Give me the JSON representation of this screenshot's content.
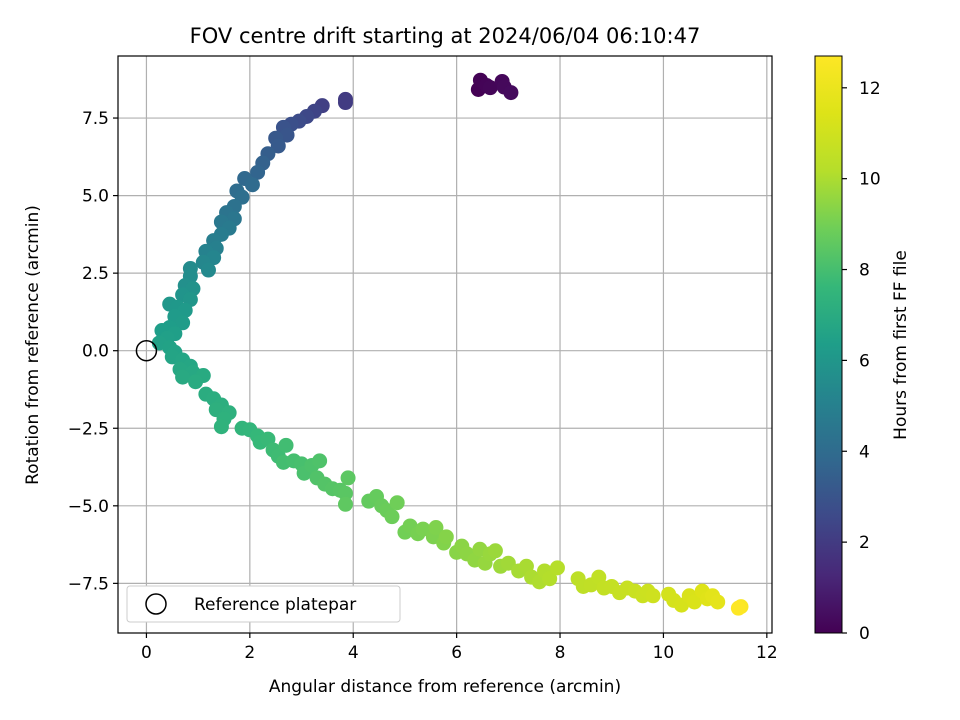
{
  "chart_data": {
    "type": "scatter",
    "title": "FOV centre drift starting at 2024/06/04 06:10:47",
    "xlabel": "Angular distance from reference (arcmin)",
    "ylabel": "Rotation from reference (arcmin)",
    "xlim": [
      -0.55,
      12.1
    ],
    "ylim": [
      -9.1,
      9.5
    ],
    "xticks": [
      0,
      2,
      4,
      6,
      8,
      10,
      12
    ],
    "xtick_labels": [
      "0",
      "2",
      "4",
      "6",
      "8",
      "10",
      "12"
    ],
    "yticks": [
      -7.5,
      -5.0,
      -2.5,
      0.0,
      2.5,
      5.0,
      7.5
    ],
    "ytick_labels": [
      "−7.5",
      "−5.0",
      "−2.5",
      "0.0",
      "2.5",
      "5.0",
      "7.5"
    ],
    "grid": true,
    "legend": {
      "position": "lower-left",
      "entries": [
        "Reference platepar"
      ]
    },
    "colorbar": {
      "label": "Hours from first FF file",
      "colormap": "viridis",
      "range": [
        0,
        12.7
      ],
      "ticks": [
        0,
        2,
        4,
        6,
        8,
        10,
        12
      ],
      "tick_labels": [
        "0",
        "2",
        "4",
        "6",
        "8",
        "10",
        "12"
      ]
    },
    "reference_point": {
      "x": 0.0,
      "y": 0.0
    },
    "points": [
      {
        "x": 6.42,
        "y": 8.42,
        "t": 0.0
      },
      {
        "x": 6.46,
        "y": 8.72,
        "t": 0.05
      },
      {
        "x": 6.58,
        "y": 8.55,
        "t": 0.1
      },
      {
        "x": 6.65,
        "y": 8.48,
        "t": 0.15
      },
      {
        "x": 6.88,
        "y": 8.68,
        "t": 0.2
      },
      {
        "x": 6.92,
        "y": 8.5,
        "t": 0.25
      },
      {
        "x": 7.05,
        "y": 8.32,
        "t": 0.3
      },
      {
        "x": 3.85,
        "y": 8.1,
        "t": 2.0
      },
      {
        "x": 3.85,
        "y": 8.0,
        "t": 2.05
      },
      {
        "x": 3.4,
        "y": 7.9,
        "t": 2.2
      },
      {
        "x": 3.25,
        "y": 7.72,
        "t": 2.35
      },
      {
        "x": 3.1,
        "y": 7.55,
        "t": 2.5
      },
      {
        "x": 2.95,
        "y": 7.4,
        "t": 2.65
      },
      {
        "x": 2.8,
        "y": 7.3,
        "t": 2.8
      },
      {
        "x": 2.65,
        "y": 7.2,
        "t": 2.95
      },
      {
        "x": 2.72,
        "y": 6.95,
        "t": 3.05
      },
      {
        "x": 2.5,
        "y": 6.85,
        "t": 3.15
      },
      {
        "x": 2.55,
        "y": 6.6,
        "t": 3.25
      },
      {
        "x": 2.35,
        "y": 6.35,
        "t": 3.4
      },
      {
        "x": 2.25,
        "y": 6.05,
        "t": 3.55
      },
      {
        "x": 2.15,
        "y": 5.75,
        "t": 3.7
      },
      {
        "x": 1.9,
        "y": 5.55,
        "t": 3.85
      },
      {
        "x": 2.05,
        "y": 5.35,
        "t": 3.95
      },
      {
        "x": 1.75,
        "y": 5.15,
        "t": 4.05
      },
      {
        "x": 1.85,
        "y": 4.95,
        "t": 4.15
      },
      {
        "x": 1.7,
        "y": 4.65,
        "t": 4.3
      },
      {
        "x": 1.55,
        "y": 4.45,
        "t": 4.4
      },
      {
        "x": 1.7,
        "y": 4.25,
        "t": 4.5
      },
      {
        "x": 1.45,
        "y": 4.15,
        "t": 4.6
      },
      {
        "x": 1.6,
        "y": 3.95,
        "t": 4.7
      },
      {
        "x": 1.45,
        "y": 3.75,
        "t": 4.8
      },
      {
        "x": 1.3,
        "y": 3.55,
        "t": 4.9
      },
      {
        "x": 1.35,
        "y": 3.3,
        "t": 5.0
      },
      {
        "x": 1.15,
        "y": 3.2,
        "t": 5.1
      },
      {
        "x": 1.3,
        "y": 3.0,
        "t": 5.2
      },
      {
        "x": 1.1,
        "y": 2.85,
        "t": 5.3
      },
      {
        "x": 1.2,
        "y": 2.6,
        "t": 5.4
      },
      {
        "x": 0.85,
        "y": 2.65,
        "t": 5.5
      },
      {
        "x": 0.85,
        "y": 2.4,
        "t": 5.6
      },
      {
        "x": 0.75,
        "y": 2.1,
        "t": 5.7
      },
      {
        "x": 0.9,
        "y": 2.0,
        "t": 5.8
      },
      {
        "x": 0.7,
        "y": 1.8,
        "t": 5.9
      },
      {
        "x": 0.85,
        "y": 1.65,
        "t": 6.0
      },
      {
        "x": 0.45,
        "y": 1.5,
        "t": 6.05
      },
      {
        "x": 0.6,
        "y": 1.4,
        "t": 6.1
      },
      {
        "x": 0.75,
        "y": 1.3,
        "t": 6.15
      },
      {
        "x": 0.55,
        "y": 1.1,
        "t": 6.2
      },
      {
        "x": 0.7,
        "y": 0.9,
        "t": 6.25
      },
      {
        "x": 0.45,
        "y": 0.75,
        "t": 6.3
      },
      {
        "x": 0.3,
        "y": 0.65,
        "t": 6.35
      },
      {
        "x": 0.55,
        "y": 0.55,
        "t": 6.4
      },
      {
        "x": 0.4,
        "y": 0.4,
        "t": 6.45
      },
      {
        "x": 0.25,
        "y": 0.25,
        "t": 6.5
      },
      {
        "x": 0.45,
        "y": 0.1,
        "t": 6.55
      },
      {
        "x": 0.55,
        "y": -0.05,
        "t": 6.6
      },
      {
        "x": 0.5,
        "y": -0.2,
        "t": 6.65
      },
      {
        "x": 0.7,
        "y": -0.3,
        "t": 6.7
      },
      {
        "x": 0.85,
        "y": -0.5,
        "t": 6.75
      },
      {
        "x": 0.65,
        "y": -0.6,
        "t": 6.8
      },
      {
        "x": 0.9,
        "y": -0.7,
        "t": 6.85
      },
      {
        "x": 0.7,
        "y": -0.85,
        "t": 6.9
      },
      {
        "x": 1.1,
        "y": -0.8,
        "t": 6.95
      },
      {
        "x": 0.95,
        "y": -1.0,
        "t": 7.0
      },
      {
        "x": 1.15,
        "y": -1.4,
        "t": 7.05
      },
      {
        "x": 1.3,
        "y": -1.55,
        "t": 7.1
      },
      {
        "x": 1.45,
        "y": -1.75,
        "t": 7.15
      },
      {
        "x": 1.35,
        "y": -1.9,
        "t": 7.2
      },
      {
        "x": 1.6,
        "y": -2.0,
        "t": 7.25
      },
      {
        "x": 1.5,
        "y": -2.2,
        "t": 7.3
      },
      {
        "x": 1.45,
        "y": -2.45,
        "t": 7.35
      },
      {
        "x": 1.85,
        "y": -2.5,
        "t": 7.45
      },
      {
        "x": 2.0,
        "y": -2.55,
        "t": 7.5
      },
      {
        "x": 2.15,
        "y": -2.75,
        "t": 7.6
      },
      {
        "x": 2.2,
        "y": -2.95,
        "t": 7.65
      },
      {
        "x": 2.35,
        "y": -2.85,
        "t": 7.7
      },
      {
        "x": 2.45,
        "y": -3.2,
        "t": 7.8
      },
      {
        "x": 2.55,
        "y": -3.4,
        "t": 7.85
      },
      {
        "x": 2.7,
        "y": -3.05,
        "t": 7.9
      },
      {
        "x": 2.65,
        "y": -3.6,
        "t": 7.95
      },
      {
        "x": 2.85,
        "y": -3.55,
        "t": 8.0
      },
      {
        "x": 3.0,
        "y": -3.65,
        "t": 8.05
      },
      {
        "x": 3.05,
        "y": -3.95,
        "t": 8.1
      },
      {
        "x": 3.2,
        "y": -3.7,
        "t": 8.15
      },
      {
        "x": 3.35,
        "y": -3.55,
        "t": 8.2
      },
      {
        "x": 3.3,
        "y": -4.1,
        "t": 8.25
      },
      {
        "x": 3.45,
        "y": -4.3,
        "t": 8.3
      },
      {
        "x": 3.6,
        "y": -4.45,
        "t": 8.35
      },
      {
        "x": 3.75,
        "y": -4.5,
        "t": 8.4
      },
      {
        "x": 3.85,
        "y": -4.6,
        "t": 8.45
      },
      {
        "x": 3.9,
        "y": -4.1,
        "t": 8.5
      },
      {
        "x": 3.85,
        "y": -4.95,
        "t": 8.55
      },
      {
        "x": 4.3,
        "y": -4.85,
        "t": 8.65
      },
      {
        "x": 4.45,
        "y": -4.7,
        "t": 8.7
      },
      {
        "x": 4.55,
        "y": -5.0,
        "t": 8.75
      },
      {
        "x": 4.65,
        "y": -5.15,
        "t": 8.8
      },
      {
        "x": 4.75,
        "y": -5.35,
        "t": 8.85
      },
      {
        "x": 4.85,
        "y": -4.9,
        "t": 8.9
      },
      {
        "x": 5.0,
        "y": -5.85,
        "t": 8.95
      },
      {
        "x": 5.1,
        "y": -5.65,
        "t": 9.0
      },
      {
        "x": 5.25,
        "y": -5.9,
        "t": 9.05
      },
      {
        "x": 5.35,
        "y": -5.75,
        "t": 9.1
      },
      {
        "x": 5.55,
        "y": -6.0,
        "t": 9.15
      },
      {
        "x": 5.6,
        "y": -5.7,
        "t": 9.2
      },
      {
        "x": 5.75,
        "y": -6.2,
        "t": 9.25
      },
      {
        "x": 5.8,
        "y": -6.0,
        "t": 9.3
      },
      {
        "x": 6.0,
        "y": -6.5,
        "t": 9.35
      },
      {
        "x": 6.1,
        "y": -6.3,
        "t": 9.4
      },
      {
        "x": 6.2,
        "y": -6.55,
        "t": 9.45
      },
      {
        "x": 6.35,
        "y": -6.75,
        "t": 9.5
      },
      {
        "x": 6.45,
        "y": -6.4,
        "t": 9.55
      },
      {
        "x": 6.55,
        "y": -6.85,
        "t": 9.6
      },
      {
        "x": 6.65,
        "y": -6.55,
        "t": 9.65
      },
      {
        "x": 6.75,
        "y": -6.45,
        "t": 9.7
      },
      {
        "x": 6.85,
        "y": -6.95,
        "t": 9.75
      },
      {
        "x": 7.0,
        "y": -6.85,
        "t": 9.8
      },
      {
        "x": 7.2,
        "y": -7.1,
        "t": 9.9
      },
      {
        "x": 7.35,
        "y": -6.95,
        "t": 9.95
      },
      {
        "x": 7.45,
        "y": -7.3,
        "t": 10.0
      },
      {
        "x": 7.6,
        "y": -7.45,
        "t": 10.05
      },
      {
        "x": 7.7,
        "y": -7.1,
        "t": 10.1
      },
      {
        "x": 7.8,
        "y": -7.35,
        "t": 10.15
      },
      {
        "x": 7.95,
        "y": -7.0,
        "t": 10.2
      },
      {
        "x": 8.35,
        "y": -7.35,
        "t": 10.4
      },
      {
        "x": 8.45,
        "y": -7.6,
        "t": 10.45
      },
      {
        "x": 8.6,
        "y": -7.55,
        "t": 10.5
      },
      {
        "x": 8.75,
        "y": -7.3,
        "t": 10.55
      },
      {
        "x": 8.85,
        "y": -7.65,
        "t": 10.6
      },
      {
        "x": 9.0,
        "y": -7.6,
        "t": 10.65
      },
      {
        "x": 9.15,
        "y": -7.8,
        "t": 10.7
      },
      {
        "x": 9.3,
        "y": -7.65,
        "t": 10.75
      },
      {
        "x": 9.45,
        "y": -7.75,
        "t": 10.8
      },
      {
        "x": 9.6,
        "y": -7.9,
        "t": 10.85
      },
      {
        "x": 9.7,
        "y": -7.75,
        "t": 10.9
      },
      {
        "x": 9.8,
        "y": -7.9,
        "t": 10.95
      },
      {
        "x": 10.1,
        "y": -7.85,
        "t": 11.1
      },
      {
        "x": 10.2,
        "y": -8.05,
        "t": 11.15
      },
      {
        "x": 10.35,
        "y": -8.2,
        "t": 11.2
      },
      {
        "x": 10.5,
        "y": -7.9,
        "t": 11.3
      },
      {
        "x": 10.6,
        "y": -8.1,
        "t": 11.35
      },
      {
        "x": 10.75,
        "y": -7.75,
        "t": 11.45
      },
      {
        "x": 10.85,
        "y": -8.0,
        "t": 11.55
      },
      {
        "x": 10.95,
        "y": -7.9,
        "t": 11.65
      },
      {
        "x": 11.05,
        "y": -8.1,
        "t": 11.75
      },
      {
        "x": 11.5,
        "y": -8.25,
        "t": 12.6
      },
      {
        "x": 11.45,
        "y": -8.3,
        "t": 12.7
      }
    ]
  }
}
